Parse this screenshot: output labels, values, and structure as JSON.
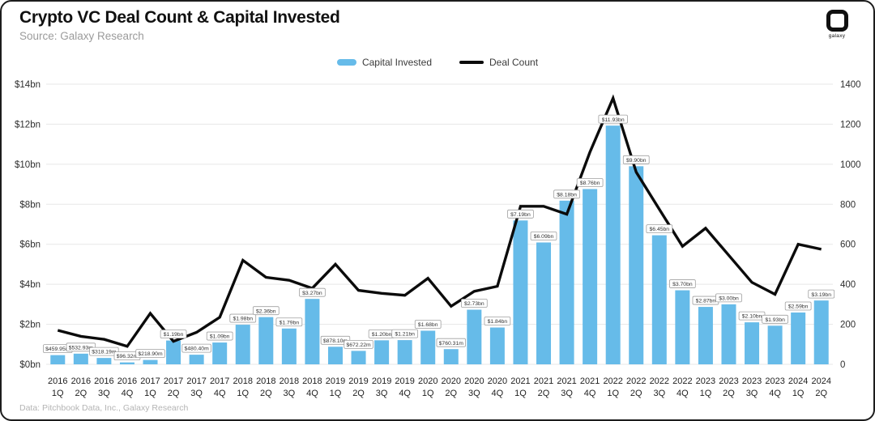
{
  "header": {
    "title": "Crypto VC Deal Count & Capital Invested",
    "source": "Source: Galaxy Research"
  },
  "logo": {
    "word": "galaxy"
  },
  "legend": {
    "capital_invested": "Capital Invested",
    "deal_count": "Deal Count"
  },
  "footer": {
    "text": "Data: Pitchbook Data, Inc., Galaxy Research"
  },
  "colors": {
    "bar": "#66bbe9",
    "line": "#0b0b0b",
    "grid": "#e7e7e7",
    "axis_text": "#2f2f2f",
    "label_text": "#333333",
    "label_border": "#a0a0a0"
  },
  "chart_data": {
    "type": "bar+line combo",
    "title": "Crypto VC Deal Count & Capital Invested",
    "categories": [
      "2016 1Q",
      "2016 2Q",
      "2016 3Q",
      "2016 4Q",
      "2017 1Q",
      "2017 2Q",
      "2017 3Q",
      "2017 4Q",
      "2018 1Q",
      "2018 2Q",
      "2018 3Q",
      "2018 4Q",
      "2019 1Q",
      "2019 2Q",
      "2019 3Q",
      "2019 4Q",
      "2020 1Q",
      "2020 2Q",
      "2020 3Q",
      "2020 4Q",
      "2021 1Q",
      "2021 2Q",
      "2021 3Q",
      "2021 4Q",
      "2022 1Q",
      "2022 2Q",
      "2022 3Q",
      "2022 4Q",
      "2023 1Q",
      "2023 2Q",
      "2023 3Q",
      "2023 4Q",
      "2024 1Q",
      "2024 2Q"
    ],
    "series": [
      {
        "name": "Capital Invested",
        "type": "bar",
        "axis": "left",
        "unit": "USD bn",
        "values": [
          0.45995,
          0.53293,
          0.31819,
          0.09632,
          0.2189,
          1.19,
          0.4804,
          1.09,
          1.98,
          2.36,
          1.79,
          3.27,
          0.8781,
          0.67222,
          1.2,
          1.21,
          1.68,
          0.76031,
          2.73,
          1.84,
          7.19,
          6.09,
          8.18,
          8.76,
          11.93,
          9.9,
          6.45,
          3.7,
          2.87,
          3.0,
          2.1,
          1.93,
          2.59,
          3.19
        ],
        "labels": [
          "$459.95m",
          "$532.93m",
          "$318.19m",
          "$96.32m",
          "$218.90m",
          "$1.19bn",
          "$480.40m",
          "$1.09bn",
          "$1.98bn",
          "$2.36bn",
          "$1.79bn",
          "$3.27bn",
          "$878.10m",
          "$672.22m",
          "$1.20bn",
          "$1.21bn",
          "$1.68bn",
          "$760.31m",
          "$2.73bn",
          "$1.84bn",
          "$7.19bn",
          "$6.09bn",
          "$8.18bn",
          "$8.76bn",
          "$11.93bn",
          "$9.90bn",
          "$6.45bn",
          "$3.70bn",
          "$2.87bn",
          "$3.00bn",
          "$2.10bn",
          "$1.93bn",
          "$2.59bn",
          "$3.19bn"
        ]
      },
      {
        "name": "Deal Count",
        "type": "line",
        "axis": "right",
        "values_estimated_from_plot": true,
        "values": [
          170,
          140,
          125,
          90,
          255,
          115,
          160,
          235,
          520,
          435,
          420,
          380,
          500,
          370,
          355,
          345,
          430,
          290,
          365,
          390,
          790,
          790,
          750,
          1060,
          1330,
          960,
          775,
          590,
          680,
          545,
          410,
          350,
          600,
          575
        ]
      }
    ],
    "left_axis": {
      "min": 0,
      "max": 14,
      "tick_values": [
        0,
        2,
        4,
        6,
        8,
        10,
        12,
        14
      ],
      "tick_labels": [
        "$0bn",
        "$2bn",
        "$4bn",
        "$6bn",
        "$8bn",
        "$10bn",
        "$12bn",
        "$14bn"
      ]
    },
    "right_axis": {
      "min": 0,
      "max": 1400,
      "tick_values": [
        0,
        200,
        400,
        600,
        800,
        1000,
        1200,
        1400
      ],
      "tick_labels": [
        "0",
        "200",
        "400",
        "600",
        "800",
        "1000",
        "1200",
        "1400"
      ]
    },
    "grid": "horizontal only",
    "legend_position": "top center"
  }
}
